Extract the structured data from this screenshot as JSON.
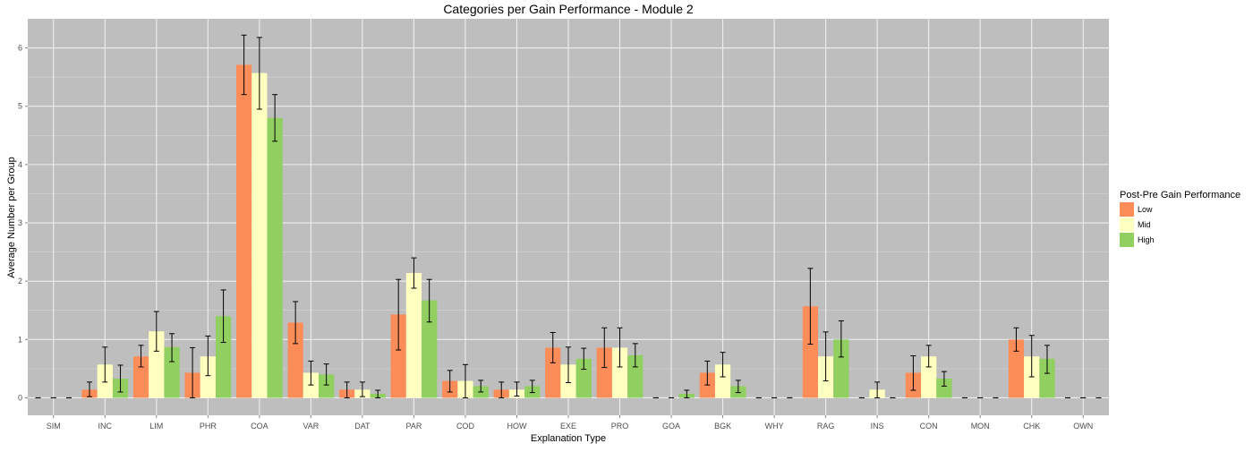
{
  "chart_data": {
    "type": "bar",
    "title": "Categories per Gain Performance - Module 2",
    "xlabel": "Explanation Type",
    "ylabel": "Average Number per Group",
    "ylim": [
      -0.3,
      6.5
    ],
    "yticks": [
      0,
      1,
      2,
      3,
      4,
      5,
      6
    ],
    "grid": true,
    "legend_position": "right",
    "legend_title": "Post-Pre Gain Performance",
    "categories": [
      "SIM",
      "INC",
      "LIM",
      "PHR",
      "COA",
      "VAR",
      "DAT",
      "PAR",
      "COD",
      "HOW",
      "EXE",
      "PRO",
      "GOA",
      "BGK",
      "WHY",
      "RAG",
      "INS",
      "CON",
      "MON",
      "CHK",
      "OWN"
    ],
    "series": [
      {
        "name": "Low",
        "color": "#FC8D59",
        "values": [
          0,
          0.14,
          0.71,
          0.43,
          5.71,
          1.29,
          0.14,
          1.43,
          0.29,
          0.14,
          0.86,
          0.86,
          0,
          0.43,
          0,
          1.57,
          0,
          0.43,
          0,
          1.0,
          0
        ],
        "error_low": [
          0,
          0.02,
          0.53,
          0.0,
          5.2,
          0.93,
          0.0,
          0.82,
          0.1,
          0.0,
          0.6,
          0.52,
          0,
          0.22,
          0,
          0.92,
          0,
          0.13,
          0,
          0.8,
          0
        ],
        "error_high": [
          0,
          0.27,
          0.9,
          0.86,
          6.22,
          1.65,
          0.27,
          2.03,
          0.47,
          0.27,
          1.12,
          1.2,
          0,
          0.63,
          0,
          2.22,
          0,
          0.72,
          0,
          1.2,
          0
        ]
      },
      {
        "name": "Mid",
        "color": "#FFFFBF",
        "values": [
          0,
          0.57,
          1.14,
          0.71,
          5.57,
          0.43,
          0.14,
          2.14,
          0.29,
          0.14,
          0.57,
          0.86,
          0,
          0.57,
          0,
          0.71,
          0.14,
          0.71,
          0,
          0.71,
          0
        ],
        "error_low": [
          0,
          0.27,
          0.8,
          0.38,
          4.95,
          0.22,
          0.02,
          1.88,
          0.0,
          0.03,
          0.26,
          0.53,
          0,
          0.36,
          0,
          0.29,
          0.0,
          0.53,
          0,
          0.36,
          0
        ],
        "error_high": [
          0,
          0.87,
          1.48,
          1.06,
          6.18,
          0.63,
          0.27,
          2.4,
          0.57,
          0.27,
          0.87,
          1.2,
          0,
          0.78,
          0,
          1.13,
          0.27,
          0.9,
          0,
          1.07,
          0
        ]
      },
      {
        "name": "High",
        "color": "#91CF60",
        "values": [
          0,
          0.33,
          0.87,
          1.4,
          4.8,
          0.4,
          0.07,
          1.67,
          0.2,
          0.2,
          0.67,
          0.73,
          0.07,
          0.2,
          0,
          1.0,
          0,
          0.33,
          0,
          0.67,
          0
        ],
        "error_low": [
          0,
          0.1,
          0.62,
          0.95,
          4.4,
          0.22,
          0.0,
          1.3,
          0.1,
          0.09,
          0.49,
          0.53,
          0.0,
          0.09,
          0,
          0.7,
          0,
          0.2,
          0,
          0.42,
          0
        ],
        "error_high": [
          0,
          0.56,
          1.1,
          1.85,
          5.2,
          0.58,
          0.13,
          2.03,
          0.3,
          0.3,
          0.85,
          0.93,
          0.13,
          0.3,
          0,
          1.32,
          0,
          0.45,
          0,
          0.9,
          0
        ]
      }
    ]
  }
}
